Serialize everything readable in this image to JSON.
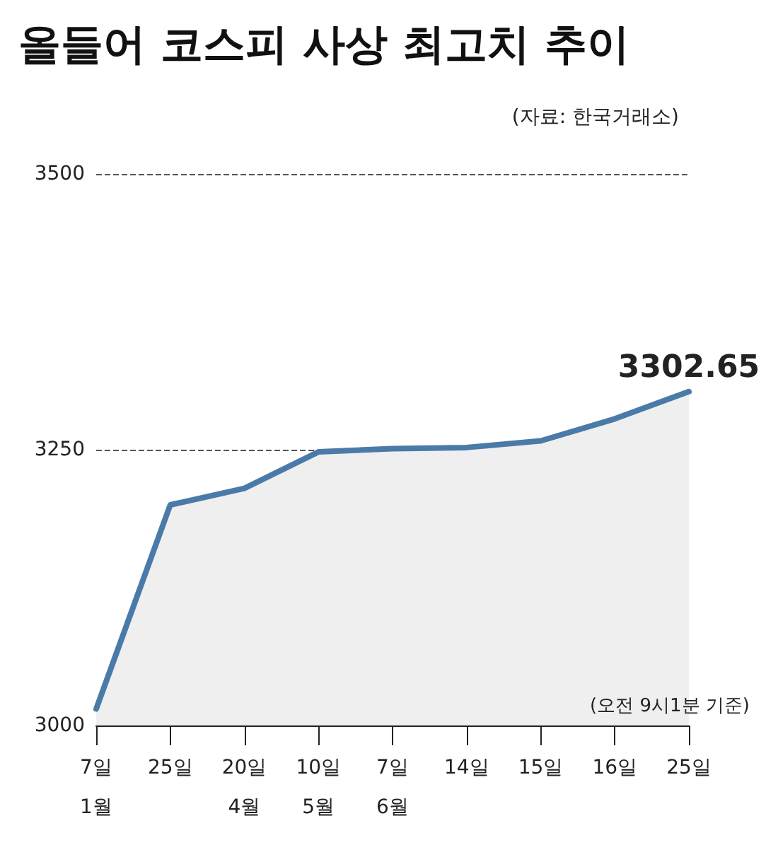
{
  "chart_data": {
    "type": "area",
    "title": "올들어 코스피 사상 최고치 추이",
    "annotations": [
      "(자료: 한국거래소)",
      "(오전 9시1분 기준)"
    ],
    "categories": [
      "7일\n1월",
      "25일",
      "20일\n4월",
      "10일\n5월",
      "7일\n6월",
      "14일",
      "15일",
      "16일",
      "25일"
    ],
    "series": [
      {
        "color": "#4a7aa8",
        "values": [
          3015,
          3200,
          3215,
          3248,
          3251,
          3252,
          3258,
          3278,
          3302.65
        ],
        "value_labels": [
          null,
          null,
          null,
          null,
          null,
          null,
          null,
          null,
          "3302.65"
        ]
      }
    ],
    "ylim": [
      3000,
      3500
    ],
    "yticks": [
      3000,
      3250,
      3500
    ],
    "grid": "y",
    "line_style": "solid"
  }
}
